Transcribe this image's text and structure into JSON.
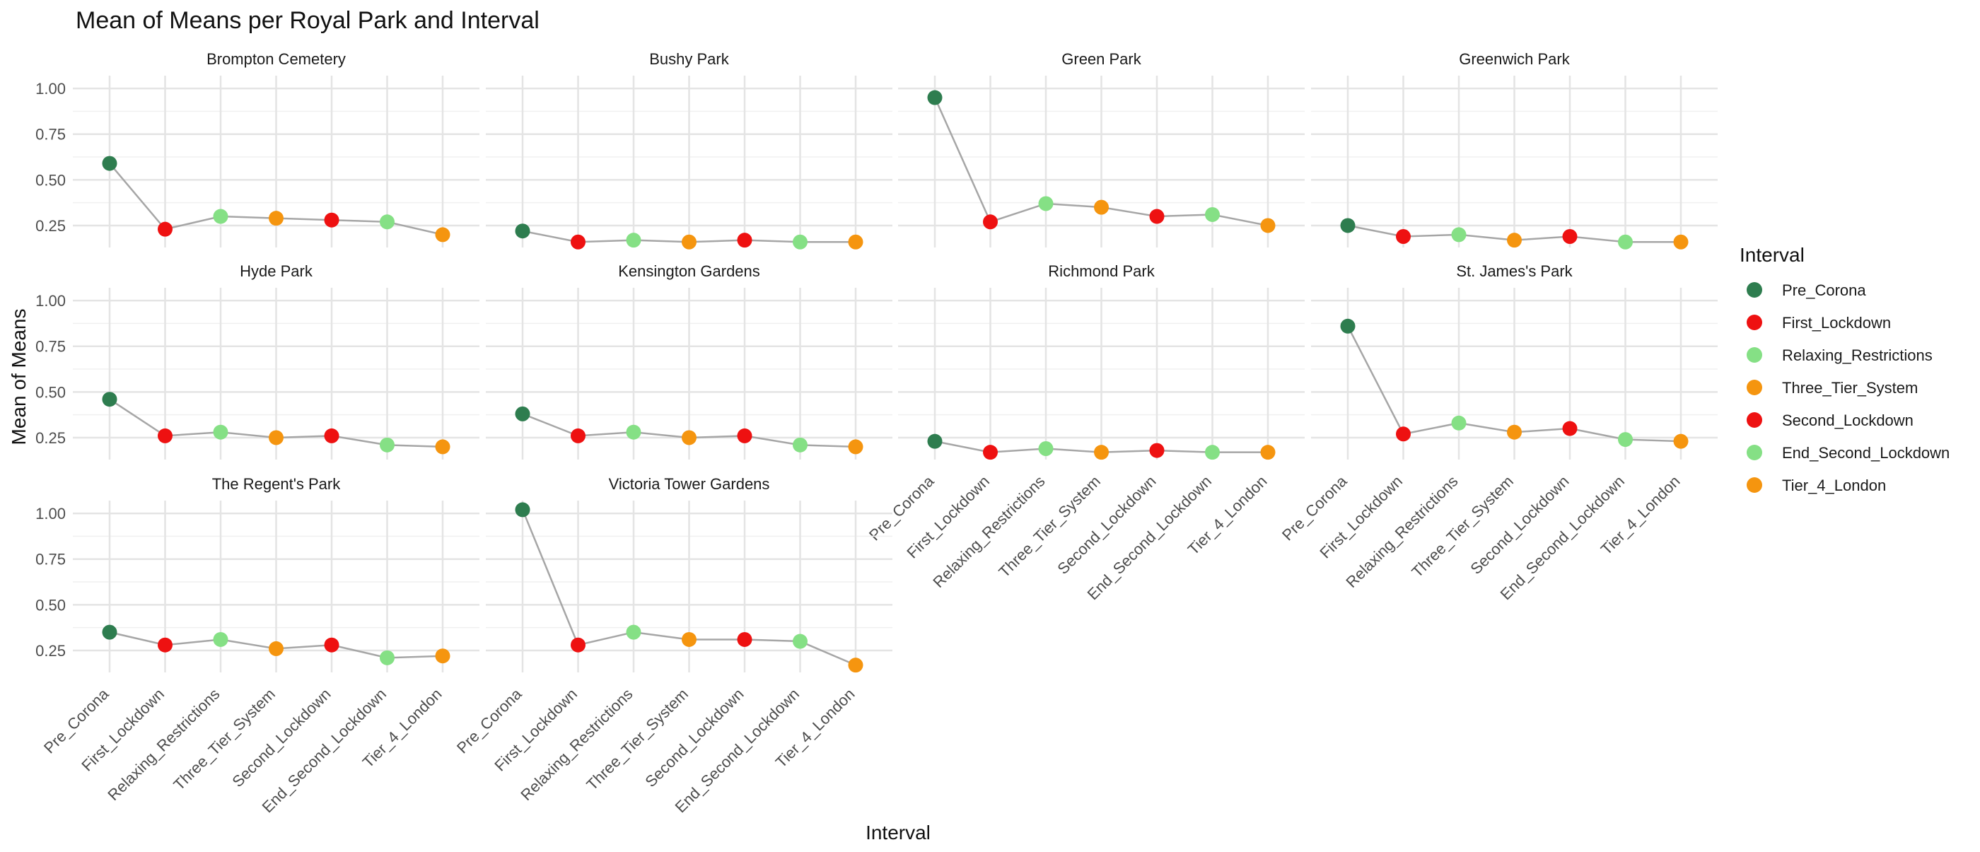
{
  "chart_data": {
    "type": "line",
    "title": "Mean of Means per Royal Park and Interval",
    "xlabel": "Interval",
    "ylabel": "Mean of Means",
    "ylim": [
      0.13,
      1.07
    ],
    "y_ticks": [
      0.25,
      0.5,
      0.75,
      1.0
    ],
    "y_tick_labels": [
      "0.25",
      "0.50",
      "0.75",
      "1.00"
    ],
    "grid": true,
    "line_color": "#a6a6a6",
    "categories": [
      "Pre_Corona",
      "First_Lockdown",
      "Relaxing_Restrictions",
      "Three_Tier_System",
      "Second_Lockdown",
      "End_Second_Lockdown",
      "Tier_4_London"
    ],
    "legend": {
      "title": "Interval",
      "placement": "right",
      "entries": [
        {
          "label": "Pre_Corona",
          "color": "#2e7d4f"
        },
        {
          "label": "First_Lockdown",
          "color": "#ee1111"
        },
        {
          "label": "Relaxing_Restrictions",
          "color": "#85e085"
        },
        {
          "label": "Three_Tier_System",
          "color": "#f5950f"
        },
        {
          "label": "Second_Lockdown",
          "color": "#ee1111"
        },
        {
          "label": "End_Second_Lockdown",
          "color": "#85e085"
        },
        {
          "label": "Tier_4_London",
          "color": "#f5950f"
        }
      ]
    },
    "panels": [
      {
        "name": "Brompton Cemetery",
        "values": [
          0.59,
          0.23,
          0.3,
          0.29,
          0.28,
          0.27,
          0.2
        ]
      },
      {
        "name": "Bushy Park",
        "values": [
          0.22,
          0.16,
          0.17,
          0.16,
          0.17,
          0.16,
          0.16
        ]
      },
      {
        "name": "Green Park",
        "values": [
          0.95,
          0.27,
          0.37,
          0.35,
          0.3,
          0.31,
          0.25
        ]
      },
      {
        "name": "Greenwich Park",
        "values": [
          0.25,
          0.19,
          0.2,
          0.17,
          0.19,
          0.16,
          0.16
        ]
      },
      {
        "name": "Hyde Park",
        "values": [
          0.46,
          0.26,
          0.28,
          0.25,
          0.26,
          0.21,
          0.2
        ]
      },
      {
        "name": "Kensington Gardens",
        "values": [
          0.38,
          0.26,
          0.28,
          0.25,
          0.26,
          0.21,
          0.2
        ]
      },
      {
        "name": "Richmond Park",
        "values": [
          0.23,
          0.17,
          0.19,
          0.17,
          0.18,
          0.17,
          0.17
        ]
      },
      {
        "name": "St. James's Park",
        "values": [
          0.86,
          0.27,
          0.33,
          0.28,
          0.3,
          0.24,
          0.23
        ]
      },
      {
        "name": "The Regent's Park",
        "values": [
          0.35,
          0.28,
          0.31,
          0.26,
          0.28,
          0.21,
          0.22
        ]
      },
      {
        "name": "Victoria Tower Gardens",
        "values": [
          1.02,
          0.28,
          0.35,
          0.31,
          0.31,
          0.3,
          0.17
        ]
      }
    ]
  }
}
